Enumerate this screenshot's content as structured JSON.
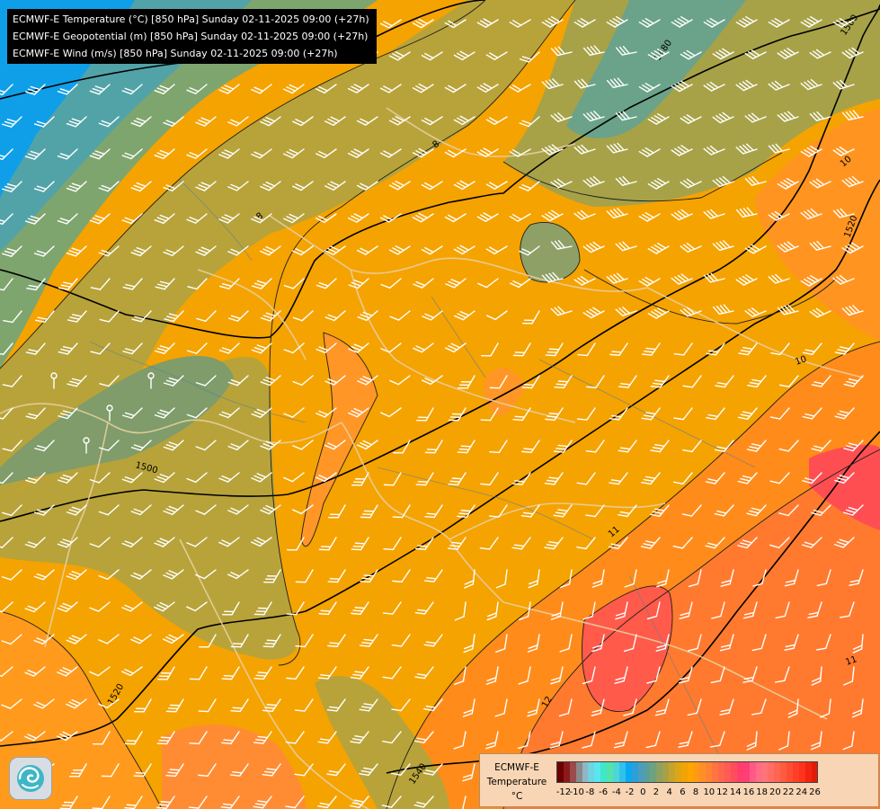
{
  "title_lines": [
    "ECMWF-E Temperature (°C) [850 hPa] Sunday 02-11-2025 09:00 (+27h)",
    "ECMWF-E Geopotential (m) [850 hPa] Sunday 02-11-2025 09:00 (+27h)",
    "ECMWF-E Wind (m/s) [850 hPa] Sunday 02-11-2025 09:00 (+27h)"
  ],
  "legend": {
    "title_line1": "ECMWF-E",
    "title_line2": "Temperature",
    "unit": "°C",
    "tick_labels": [
      "-12",
      "-10",
      "-8",
      "-6",
      "-4",
      "-2",
      "0",
      "2",
      "4",
      "6",
      "8",
      "10",
      "12",
      "14",
      "16",
      "18",
      "20",
      "22",
      "24",
      "26"
    ],
    "colors": [
      "#7a0c10",
      "#a02121",
      "#8d5a5a",
      "#8b8b9a",
      "#8fb0c0",
      "#6fd0de",
      "#4fe0f0",
      "#3fe8c0",
      "#58e4a2",
      "#48d0c8",
      "#2ec0e6",
      "#00a8f0",
      "#2ea0d8",
      "#4b9ec4",
      "#5d9f9a",
      "#6fa27c",
      "#8ea160",
      "#a89f43",
      "#c7a62a",
      "#e2a80e",
      "#f5a300",
      "#ffa400",
      "#ff9a1c",
      "#ff8c33",
      "#ff7a44",
      "#ff6a4f",
      "#ff5558",
      "#ff455f",
      "#ff3d66",
      "#ff2e70",
      "#ff3380",
      "#ff5a8f",
      "#ff6d88",
      "#ff7979",
      "#ff7060",
      "#ff6548",
      "#ff5a38",
      "#ff4a2a",
      "#ff3b20",
      "#ff2a14",
      "#ff1a0a",
      "#f60000",
      "#e20000",
      "#d00000",
      "#be0000",
      "#ff3030",
      "#ff4d4d",
      "#ff6666",
      "#ff7d7d",
      "#ff9696",
      "#ff6b1c"
    ]
  },
  "contour_labels": {
    "temperature": [
      "8",
      "8",
      "10",
      "10",
      "11",
      "11",
      "12"
    ],
    "geopotential": [
      "1480",
      "1500",
      "1500",
      "1520",
      "1520",
      "1540"
    ]
  },
  "wind_barb_symbol": "wind-barb-icon",
  "logo_icon": "ecmwf-swirl-icon"
}
